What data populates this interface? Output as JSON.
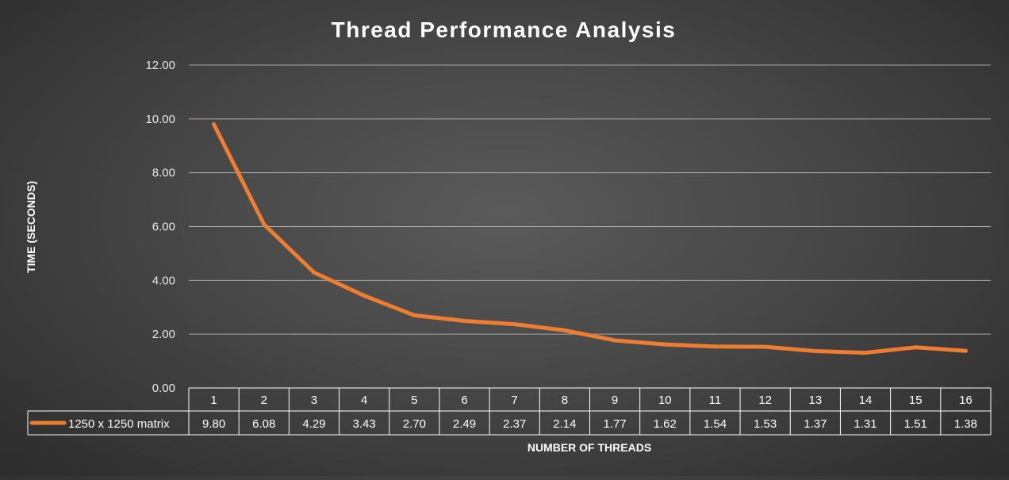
{
  "chart_data": {
    "type": "line",
    "title": "Thread Performance Analysis",
    "xlabel": "NUMBER OF THREADS",
    "ylabel": "TIME (SECONDS)",
    "categories": [
      "1",
      "2",
      "3",
      "4",
      "5",
      "6",
      "7",
      "8",
      "9",
      "10",
      "11",
      "12",
      "13",
      "14",
      "15",
      "16"
    ],
    "series": [
      {
        "name": "1250 x 1250 matrix",
        "color": "#ED7D31",
        "values": [
          9.8,
          6.08,
          4.29,
          3.43,
          2.7,
          2.49,
          2.37,
          2.14,
          1.77,
          1.62,
          1.54,
          1.53,
          1.37,
          1.31,
          1.51,
          1.38
        ],
        "value_labels": [
          "9.80",
          "6.08",
          "4.29",
          "3.43",
          "2.70",
          "2.49",
          "2.37",
          "2.14",
          "1.77",
          "1.62",
          "1.54",
          "1.53",
          "1.37",
          "1.31",
          "1.51",
          "1.38"
        ]
      }
    ],
    "ylim": [
      0,
      12
    ],
    "yticks": [
      "0.00",
      "2.00",
      "4.00",
      "6.00",
      "8.00",
      "10.00",
      "12.00"
    ],
    "grid": true,
    "legend": "data-table",
    "data_table": true
  }
}
